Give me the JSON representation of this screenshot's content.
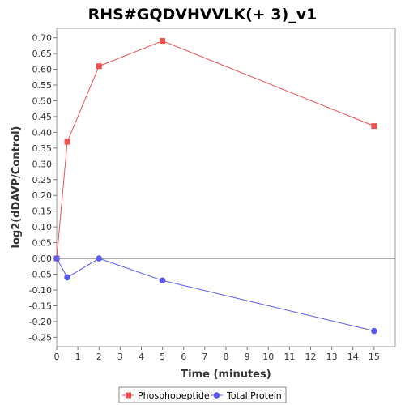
{
  "chart_data": {
    "type": "line",
    "title": "RHS#GQDVHVVLK(+ 3)_v1",
    "xlabel": "Time (minutes)",
    "ylabel": "log2(dDAVP/Control)",
    "xlim": [
      0,
      16
    ],
    "ylim": [
      -0.28,
      0.73
    ],
    "x_ticks": [
      0,
      1,
      2,
      3,
      4,
      5,
      6,
      7,
      8,
      9,
      10,
      11,
      12,
      13,
      14,
      15
    ],
    "y_ticks": [
      -0.25,
      -0.2,
      -0.15,
      -0.1,
      -0.05,
      0.0,
      0.05,
      0.1,
      0.15,
      0.2,
      0.25,
      0.3,
      0.35,
      0.4,
      0.45,
      0.5,
      0.55,
      0.6,
      0.65,
      0.7
    ],
    "grid": false,
    "legend_position": "bottom",
    "series": [
      {
        "name": "Phosphopeptide",
        "color": "#f05050",
        "marker": "square",
        "x": [
          0,
          0.5,
          2,
          5,
          15
        ],
        "y": [
          0.0,
          0.37,
          0.61,
          0.69,
          0.42
        ]
      },
      {
        "name": "Total Protein",
        "color": "#5a5af0",
        "marker": "circle",
        "x": [
          0,
          0.5,
          2,
          5,
          15
        ],
        "y": [
          0.0,
          -0.06,
          0.0,
          -0.07,
          -0.23
        ]
      }
    ]
  }
}
